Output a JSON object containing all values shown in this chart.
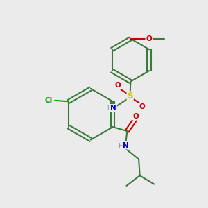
{
  "background_color": "#ebebeb",
  "bond_color": "#3a7a3a",
  "atom_colors": {
    "N": "#0000cc",
    "O": "#cc0000",
    "S": "#cccc00",
    "Cl": "#00aa00",
    "H": "#888888",
    "C": "#3a7a3a"
  },
  "figsize": [
    3.0,
    3.0
  ],
  "dpi": 100
}
